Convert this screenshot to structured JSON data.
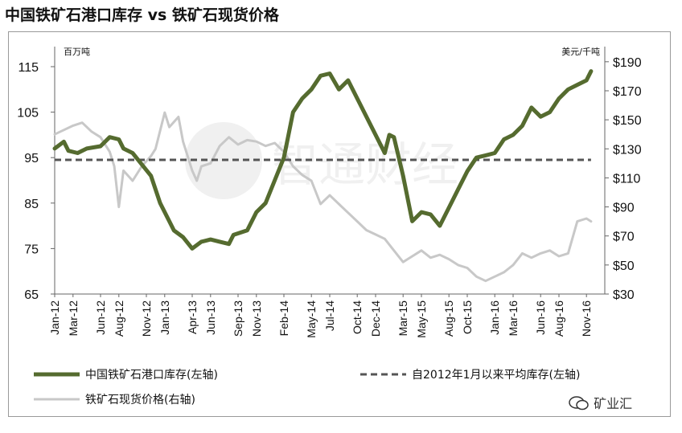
{
  "title": "中国铁矿石港口库存 vs 铁矿石现货价格",
  "watermark_text": "智通财经",
  "source_logo": "矿业汇",
  "chart_data": {
    "type": "line",
    "left_unit": "百万吨",
    "right_unit": "美元/千吨",
    "left_ylim": [
      65,
      118
    ],
    "right_ylim": [
      30,
      196
    ],
    "left_ticks": [
      115,
      105,
      95,
      85,
      75,
      65
    ],
    "right_ticks": [
      "$190",
      "$170",
      "$150",
      "$130",
      "$110",
      "$90",
      "$70",
      "$50",
      "$30"
    ],
    "right_tick_values": [
      190,
      170,
      150,
      130,
      110,
      90,
      70,
      50,
      30
    ],
    "x_ticks": [
      "Jan-12",
      "Mar-12",
      "Jun-12",
      "Aug-12",
      "Nov-12",
      "Jan-13",
      "Apr-13",
      "Jun-13",
      "Sep-13",
      "Nov-13",
      "Feb-14",
      "May-14",
      "Jul-14",
      "Oct-14",
      "Dec-14",
      "Mar-15",
      "May-15",
      "Aug-15",
      "Oct-15",
      "Jan-16",
      "Mar-16",
      "Jun-16",
      "Aug-16",
      "Nov-16"
    ],
    "x_tick_months": [
      0,
      2,
      5,
      7,
      10,
      12,
      15,
      17,
      20,
      22,
      25,
      28,
      30,
      33,
      35,
      38,
      40,
      43,
      45,
      48,
      50,
      53,
      55,
      58
    ],
    "x_range_months": [
      0,
      60
    ],
    "series": [
      {
        "name": "中国铁矿石港口库存(左轴)",
        "axis": "left",
        "color": "#556b2f",
        "style": "solid",
        "points": [
          [
            0,
            97
          ],
          [
            1,
            98.5
          ],
          [
            1.5,
            96.5
          ],
          [
            2.5,
            96
          ],
          [
            3.5,
            97
          ],
          [
            5,
            97.5
          ],
          [
            6,
            99.5
          ],
          [
            7,
            99
          ],
          [
            7.5,
            97
          ],
          [
            8.5,
            96
          ],
          [
            9.5,
            93.5
          ],
          [
            10.5,
            91
          ],
          [
            11.5,
            85
          ],
          [
            12.5,
            81
          ],
          [
            13,
            79
          ],
          [
            14,
            77.5
          ],
          [
            15,
            75
          ],
          [
            16,
            76.5
          ],
          [
            17,
            77
          ],
          [
            18,
            76.5
          ],
          [
            19,
            76
          ],
          [
            19.5,
            78
          ],
          [
            21,
            79
          ],
          [
            22,
            83
          ],
          [
            23,
            85
          ],
          [
            24,
            90
          ],
          [
            25,
            95
          ],
          [
            26,
            105
          ],
          [
            27,
            108
          ],
          [
            28,
            110
          ],
          [
            29,
            113
          ],
          [
            30,
            113.5
          ],
          [
            31,
            110
          ],
          [
            32,
            112
          ],
          [
            33,
            108
          ],
          [
            34,
            104
          ],
          [
            35,
            100
          ],
          [
            36,
            96
          ],
          [
            36.5,
            100
          ],
          [
            37,
            99.5
          ],
          [
            38,
            91
          ],
          [
            39,
            81
          ],
          [
            40,
            83
          ],
          [
            41,
            82.5
          ],
          [
            42,
            80
          ],
          [
            43,
            84
          ],
          [
            44,
            88
          ],
          [
            45,
            92
          ],
          [
            46,
            95
          ],
          [
            47,
            95.5
          ],
          [
            48,
            96
          ],
          [
            49,
            99
          ],
          [
            50,
            100
          ],
          [
            51,
            102
          ],
          [
            52,
            106
          ],
          [
            53,
            104
          ],
          [
            54,
            105
          ],
          [
            55,
            108
          ],
          [
            56,
            110
          ],
          [
            57,
            111
          ],
          [
            58,
            112
          ],
          [
            58.5,
            114
          ]
        ]
      },
      {
        "name": "自2012年1月以来平均库存(左轴)",
        "axis": "left",
        "color": "#555555",
        "style": "dashed",
        "points": [
          [
            0,
            94.5
          ],
          [
            58.5,
            94.5
          ]
        ]
      },
      {
        "name": "铁矿石现货价格(右轴)",
        "axis": "right",
        "color": "#c8c8c8",
        "style": "solid",
        "points": [
          [
            0,
            140
          ],
          [
            1,
            143
          ],
          [
            2,
            146
          ],
          [
            3,
            148
          ],
          [
            4,
            142
          ],
          [
            5,
            138
          ],
          [
            6,
            128
          ],
          [
            6.5,
            118
          ],
          [
            7,
            90
          ],
          [
            7.5,
            115
          ],
          [
            8.5,
            108
          ],
          [
            9.5,
            118
          ],
          [
            10.5,
            125
          ],
          [
            11,
            130
          ],
          [
            12,
            155
          ],
          [
            12.5,
            145
          ],
          [
            13.5,
            152
          ],
          [
            14,
            135
          ],
          [
            15,
            115
          ],
          [
            15.5,
            108
          ],
          [
            16,
            118
          ],
          [
            17,
            120
          ],
          [
            18,
            132
          ],
          [
            19,
            138
          ],
          [
            20,
            133
          ],
          [
            21,
            136
          ],
          [
            22,
            135
          ],
          [
            23,
            132
          ],
          [
            24,
            134
          ],
          [
            25,
            128
          ],
          [
            26,
            118
          ],
          [
            27,
            112
          ],
          [
            28,
            108
          ],
          [
            29,
            92
          ],
          [
            30,
            98
          ],
          [
            31,
            92
          ],
          [
            32,
            86
          ],
          [
            33,
            80
          ],
          [
            34,
            74
          ],
          [
            35,
            71
          ],
          [
            36,
            68
          ],
          [
            37,
            60
          ],
          [
            38,
            52
          ],
          [
            39,
            56
          ],
          [
            40,
            60
          ],
          [
            41,
            55
          ],
          [
            42,
            57
          ],
          [
            43,
            54
          ],
          [
            44,
            50
          ],
          [
            45,
            48
          ],
          [
            46,
            42
          ],
          [
            47,
            39
          ],
          [
            48,
            42
          ],
          [
            49,
            45
          ],
          [
            50,
            50
          ],
          [
            51,
            58
          ],
          [
            52,
            55
          ],
          [
            53,
            58
          ],
          [
            54,
            60
          ],
          [
            55,
            56
          ],
          [
            56,
            58
          ],
          [
            57,
            80
          ],
          [
            58,
            82
          ],
          [
            58.5,
            80
          ]
        ]
      }
    ],
    "legend": [
      {
        "label": "中国铁矿石港口库存(左轴)",
        "color": "#556b2f",
        "style": "solid"
      },
      {
        "label": "自2012年1月以来平均库存(左轴)",
        "color": "#555555",
        "style": "dashed"
      },
      {
        "label": "铁矿石现货价格(右轴)",
        "color": "#c8c8c8",
        "style": "solid"
      }
    ]
  }
}
